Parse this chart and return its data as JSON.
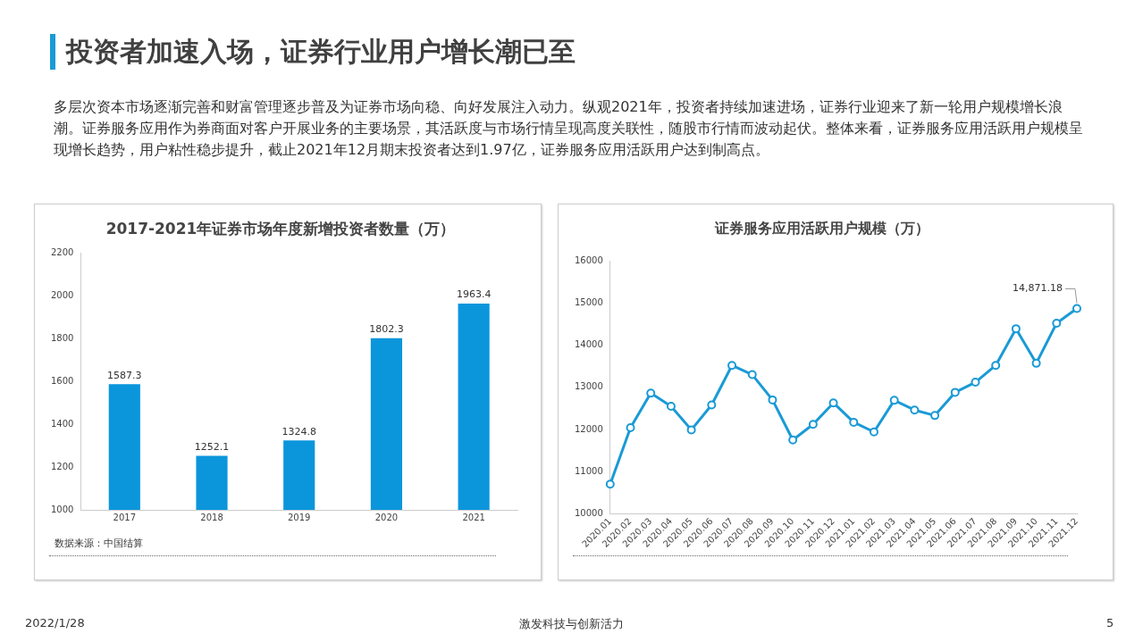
{
  "chart_data": [
    {
      "type": "other",
      "title": "投资者加速入场，证券行业用户增长潮已至",
      "annotations": [
        "多层次资本市场逐渐完善和财富管理逐步普及为证券市场向稳、向好发展注入动力。纵观2021年，投资者持续加速进场，证券行业迎来了新一轮用户规模增长浪潮。证券服务应用作为券商面对客户开展业务的主要场景，其活跃度与市场行情呈现高度关联性，随股市行情而波动起伏。整体来看，证券服务应用活跃用户规模呈现增长趋势，用户粘性稳步提升，截止2021年12月期末投资者达到1.97亿，证券服务应用活跃用户达到制高点。",
        "2022/1/28",
        "激发科技与创新活力",
        "5"
      ]
    },
    {
      "type": "bar",
      "title": "2017-2021年证券市场年度新增投资者数量（万）",
      "categories": [
        "2017",
        "2018",
        "2019",
        "2020",
        "2021"
      ],
      "values": [
        1587.3,
        1252.1,
        1324.8,
        1802.3,
        1963.4
      ],
      "color": "#0b96dc",
      "ylim": [
        1000,
        2200
      ],
      "yticks": [
        1000,
        1200,
        1400,
        1600,
        1800,
        2000,
        2200
      ],
      "grid": false,
      "data_labels": true,
      "annotations": [
        "数据来源：中国结算"
      ]
    },
    {
      "type": "line",
      "title": "证券服务应用活跃用户规模（万）",
      "categories": [
        "2020.01",
        "2020.02",
        "2020.03",
        "2020.04",
        "2020.05",
        "2020.06",
        "2020.07",
        "2020.08",
        "2020.09",
        "2020.10",
        "2020.11",
        "2020.12",
        "2021.01",
        "2021.02",
        "2021.03",
        "2021.04",
        "2021.05",
        "2021.06",
        "2021.07",
        "2021.08",
        "2021.09",
        "2021.10",
        "2021.11",
        "2021.12"
      ],
      "values": [
        10700,
        12040,
        12860,
        12550,
        11990,
        12580,
        13520,
        13300,
        12700,
        11750,
        12120,
        12630,
        12170,
        11940,
        12690,
        12460,
        12330,
        12880,
        13120,
        13520,
        14390,
        13570,
        14520,
        14871.18
      ],
      "value_labels": [
        null,
        null,
        null,
        null,
        null,
        null,
        null,
        null,
        null,
        null,
        null,
        null,
        null,
        null,
        null,
        null,
        null,
        null,
        null,
        null,
        null,
        null,
        null,
        "14,871.18"
      ],
      "color": "#1a9ad6",
      "marker": "circle",
      "line_style": "solid",
      "ylim": [
        10000,
        16000
      ],
      "yticks": [
        10000,
        11000,
        12000,
        13000,
        14000,
        15000,
        16000
      ],
      "grid": false
    }
  ]
}
